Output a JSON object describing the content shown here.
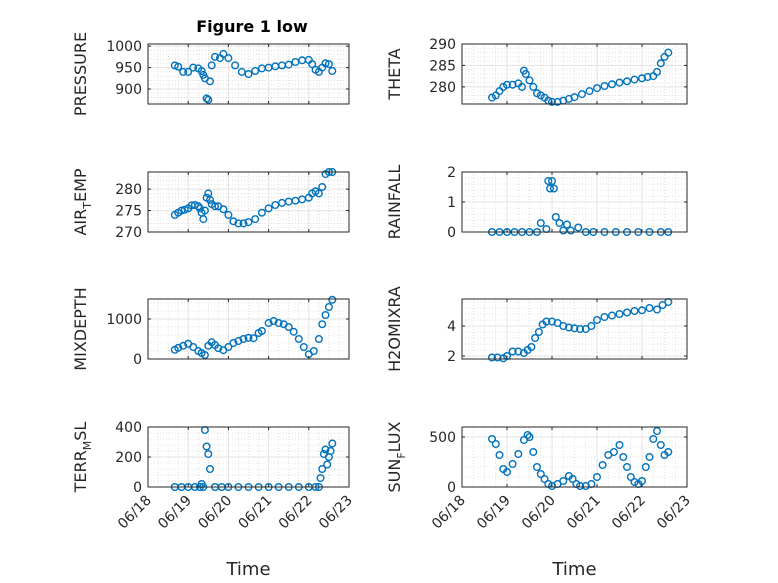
{
  "figure_title": "Figure 1 low",
  "chart_data": [
    {
      "type": "scatter",
      "ylabel": "PRESSURE",
      "ylim": [
        865,
        1005
      ],
      "yticks": [
        900,
        950,
        1000
      ],
      "grid": true,
      "marker": "circle-open",
      "color": "#0072BD",
      "x": [
        "06/18 16:00",
        "06/18 18:00",
        "06/18 21:00",
        "06/19 00:00",
        "06/19 03:00",
        "06/19 06:00",
        "06/19 08:00",
        "06/19 09:00",
        "06/19 10:00",
        "06/19 11:00",
        "06/19 12:00",
        "06/19 13:00",
        "06/19 14:00",
        "06/19 16:00",
        "06/19 19:00",
        "06/19 21:00",
        "06/20 00:00",
        "06/20 04:00",
        "06/20 08:00",
        "06/20 12:00",
        "06/20 16:00",
        "06/20 20:00",
        "06/21 00:00",
        "06/21 04:00",
        "06/21 08:00",
        "06/21 12:00",
        "06/21 16:00",
        "06/21 20:00",
        "06/22 00:00",
        "06/22 02:00",
        "06/22 04:00",
        "06/22 06:00",
        "06/22 08:00",
        "06/22 10:00",
        "06/22 12:00",
        "06/22 14:00"
      ],
      "y": [
        955,
        952,
        940,
        940,
        950,
        948,
        942,
        933,
        925,
        878,
        875,
        918,
        955,
        975,
        972,
        982,
        972,
        955,
        940,
        935,
        942,
        948,
        950,
        953,
        955,
        957,
        963,
        967,
        968,
        958,
        945,
        940,
        950,
        960,
        958,
        942
      ]
    },
    {
      "type": "scatter",
      "ylabel": "THETA",
      "ylim": [
        276,
        290
      ],
      "yticks": [
        280,
        285,
        290
      ],
      "grid": true,
      "marker": "circle-open",
      "color": "#0072BD",
      "x": [
        "06/18 16:00",
        "06/18 18:00",
        "06/18 20:00",
        "06/18 22:00",
        "06/19 00:00",
        "06/19 03:00",
        "06/19 06:00",
        "06/19 08:00",
        "06/19 09:00",
        "06/19 10:00",
        "06/19 12:00",
        "06/19 14:00",
        "06/19 16:00",
        "06/19 18:00",
        "06/19 20:00",
        "06/19 22:00",
        "06/20 00:00",
        "06/20 03:00",
        "06/20 06:00",
        "06/20 09:00",
        "06/20 12:00",
        "06/20 16:00",
        "06/20 20:00",
        "06/21 00:00",
        "06/21 04:00",
        "06/21 08:00",
        "06/21 12:00",
        "06/21 16:00",
        "06/21 20:00",
        "06/22 00:00",
        "06/22 03:00",
        "06/22 06:00",
        "06/22 08:00",
        "06/22 10:00",
        "06/22 12:00",
        "06/22 14:00"
      ],
      "y": [
        277.5,
        278,
        279,
        280,
        280.5,
        280.5,
        280.8,
        280,
        283.8,
        283,
        281.5,
        280,
        278.5,
        278,
        277.5,
        276.8,
        276.5,
        276.5,
        276.8,
        277.2,
        277.6,
        278.3,
        279,
        279.7,
        280.2,
        280.6,
        281,
        281.3,
        281.7,
        282,
        282.3,
        282.5,
        283.5,
        285.5,
        287,
        288
      ]
    },
    {
      "type": "scatter",
      "ylabel": "AIR_TEMP",
      "ylim": [
        270,
        284
      ],
      "yticks": [
        270,
        275,
        280
      ],
      "grid": true,
      "marker": "circle-open",
      "color": "#0072BD",
      "x": [
        "06/18 16:00",
        "06/18 18:00",
        "06/18 20:00",
        "06/18 22:00",
        "06/19 00:00",
        "06/19 02:00",
        "06/19 04:00",
        "06/19 06:00",
        "06/19 07:00",
        "06/19 08:00",
        "06/19 09:00",
        "06/19 10:00",
        "06/19 11:00",
        "06/19 12:00",
        "06/19 13:00",
        "06/19 14:00",
        "06/19 16:00",
        "06/19 18:00",
        "06/19 21:00",
        "06/20 00:00",
        "06/20 03:00",
        "06/20 06:00",
        "06/20 09:00",
        "06/20 12:00",
        "06/20 16:00",
        "06/20 20:00",
        "06/21 00:00",
        "06/21 04:00",
        "06/21 08:00",
        "06/21 12:00",
        "06/21 16:00",
        "06/21 20:00",
        "06/22 00:00",
        "06/22 02:00",
        "06/22 04:00",
        "06/22 06:00",
        "06/22 08:00",
        "06/22 10:00",
        "06/22 12:00",
        "06/22 14:00"
      ],
      "y": [
        274,
        274.5,
        275,
        275.2,
        275.5,
        276.2,
        276.3,
        276,
        275.5,
        274.5,
        273,
        275,
        278,
        279,
        277.5,
        276.5,
        276,
        276,
        275.3,
        274,
        272.5,
        272,
        272,
        272.3,
        273,
        274.5,
        275.5,
        276.3,
        276.8,
        277.1,
        277.3,
        277.6,
        278,
        279,
        279.5,
        279,
        280.5,
        283.5,
        284,
        284
      ]
    },
    {
      "type": "scatter",
      "ylabel": "RAINFALL",
      "ylim": [
        0,
        2
      ],
      "yticks": [
        0,
        1,
        2
      ],
      "grid": true,
      "marker": "circle-open",
      "color": "#0072BD",
      "x": [
        "06/18 16:00",
        "06/18 20:00",
        "06/19 00:00",
        "06/19 04:00",
        "06/19 08:00",
        "06/19 12:00",
        "06/19 16:00",
        "06/19 18:00",
        "06/19 21:00",
        "06/19 22:00",
        "06/19 23:00",
        "06/20 00:00",
        "06/20 01:00",
        "06/20 02:00",
        "06/20 04:00",
        "06/20 06:00",
        "06/20 08:00",
        "06/20 10:00",
        "06/20 14:00",
        "06/20 18:00",
        "06/20 22:00",
        "06/21 04:00",
        "06/21 10:00",
        "06/21 16:00",
        "06/21 22:00",
        "06/22 04:00",
        "06/22 10:00",
        "06/22 14:00"
      ],
      "y": [
        0,
        0,
        0,
        0,
        0,
        0,
        0,
        0.3,
        0.1,
        1.7,
        1.45,
        1.7,
        1.45,
        0.5,
        0.3,
        0.05,
        0.25,
        0.05,
        0.15,
        0,
        0,
        0,
        0,
        0,
        0,
        0,
        0,
        0
      ]
    },
    {
      "type": "scatter",
      "ylabel": "MIXDEPTH",
      "ylim": [
        0,
        1500
      ],
      "yticks": [
        0,
        1000
      ],
      "grid": true,
      "marker": "circle-open",
      "color": "#0072BD",
      "x": [
        "06/18 16:00",
        "06/18 18:00",
        "06/18 21:00",
        "06/19 00:00",
        "06/19 03:00",
        "06/19 06:00",
        "06/19 08:00",
        "06/19 10:00",
        "06/19 12:00",
        "06/19 14:00",
        "06/19 16:00",
        "06/19 18:00",
        "06/19 21:00",
        "06/20 00:00",
        "06/20 03:00",
        "06/20 06:00",
        "06/20 09:00",
        "06/20 12:00",
        "06/20 15:00",
        "06/20 18:00",
        "06/20 20:00",
        "06/21 00:00",
        "06/21 03:00",
        "06/21 06:00",
        "06/21 09:00",
        "06/21 12:00",
        "06/21 15:00",
        "06/21 18:00",
        "06/21 21:00",
        "06/22 00:00",
        "06/22 03:00",
        "06/22 06:00",
        "06/22 08:00",
        "06/22 10:00",
        "06/22 12:00",
        "06/22 14:00"
      ],
      "y": [
        230,
        280,
        330,
        380,
        300,
        200,
        150,
        100,
        330,
        420,
        350,
        270,
        220,
        300,
        400,
        450,
        500,
        530,
        520,
        650,
        700,
        900,
        950,
        900,
        870,
        800,
        680,
        500,
        300,
        120,
        200,
        500,
        870,
        1100,
        1300,
        1480
      ]
    },
    {
      "type": "scatter",
      "ylabel": "H2OMIXRA",
      "ylim": [
        1.8,
        5.8
      ],
      "yticks": [
        2,
        4
      ],
      "grid": true,
      "marker": "circle-open",
      "color": "#0072BD",
      "x": [
        "06/18 16:00",
        "06/18 19:00",
        "06/18 22:00",
        "06/19 00:00",
        "06/19 03:00",
        "06/19 06:00",
        "06/19 09:00",
        "06/19 11:00",
        "06/19 13:00",
        "06/19 15:00",
        "06/19 17:00",
        "06/19 19:00",
        "06/19 21:00",
        "06/20 00:00",
        "06/20 03:00",
        "06/20 06:00",
        "06/20 09:00",
        "06/20 12:00",
        "06/20 15:00",
        "06/20 18:00",
        "06/20 21:00",
        "06/21 00:00",
        "06/21 04:00",
        "06/21 08:00",
        "06/21 12:00",
        "06/21 16:00",
        "06/21 20:00",
        "06/22 00:00",
        "06/22 04:00",
        "06/22 08:00",
        "06/22 11:00",
        "06/22 14:00"
      ],
      "y": [
        1.9,
        1.9,
        1.85,
        2.0,
        2.3,
        2.3,
        2.2,
        2.4,
        2.6,
        3.2,
        3.6,
        4.1,
        4.3,
        4.3,
        4.2,
        4.0,
        3.9,
        3.85,
        3.8,
        3.8,
        4.0,
        4.4,
        4.6,
        4.7,
        4.8,
        4.9,
        5.0,
        5.05,
        5.2,
        5.1,
        5.4,
        5.6
      ]
    },
    {
      "type": "scatter",
      "ylabel": "TERR_MSL",
      "ylim": [
        0,
        400
      ],
      "yticks": [
        0,
        200,
        400
      ],
      "grid": true,
      "marker": "circle-open",
      "color": "#0072BD",
      "xticks": [
        "06/18",
        "06/19",
        "06/20",
        "06/21",
        "06/22",
        "06/23"
      ],
      "xlabel": "Time",
      "x": [
        "06/18 16:00",
        "06/18 20:00",
        "06/19 00:00",
        "06/19 04:00",
        "06/19 07:00",
        "06/19 08:00",
        "06/19 09:00",
        "06/19 10:00",
        "06/19 11:00",
        "06/19 12:00",
        "06/19 13:00",
        "06/19 16:00",
        "06/19 20:00",
        "06/20 00:00",
        "06/20 06:00",
        "06/20 12:00",
        "06/20 18:00",
        "06/21 00:00",
        "06/21 06:00",
        "06/21 12:00",
        "06/21 18:00",
        "06/22 00:00",
        "06/22 04:00",
        "06/22 06:00",
        "06/22 07:00",
        "06/22 08:00",
        "06/22 09:00",
        "06/22 10:00",
        "06/22 11:00",
        "06/22 12:00",
        "06/22 13:00",
        "06/22 14:00"
      ],
      "y": [
        0,
        0,
        0,
        0,
        0,
        20,
        0,
        380,
        270,
        220,
        120,
        0,
        0,
        0,
        0,
        0,
        0,
        0,
        0,
        0,
        0,
        0,
        0,
        0,
        60,
        120,
        220,
        250,
        150,
        200,
        240,
        290
      ]
    },
    {
      "type": "scatter",
      "ylabel": "SUN_FLUX",
      "ylim": [
        0,
        600
      ],
      "yticks": [
        0,
        500
      ],
      "grid": true,
      "marker": "circle-open",
      "color": "#0072BD",
      "xticks": [
        "06/18",
        "06/19",
        "06/20",
        "06/21",
        "06/22",
        "06/23"
      ],
      "xlabel": "Time",
      "x": [
        "06/18 16:00",
        "06/18 18:00",
        "06/18 20:00",
        "06/18 22:00",
        "06/19 00:00",
        "06/19 03:00",
        "06/19 06:00",
        "06/19 09:00",
        "06/19 11:00",
        "06/19 12:00",
        "06/19 14:00",
        "06/19 16:00",
        "06/19 18:00",
        "06/19 20:00",
        "06/19 22:00",
        "06/20 00:00",
        "06/20 03:00",
        "06/20 06:00",
        "06/20 09:00",
        "06/20 11:00",
        "06/20 13:00",
        "06/20 15:00",
        "06/20 18:00",
        "06/20 21:00",
        "06/21 00:00",
        "06/21 03:00",
        "06/21 06:00",
        "06/21 09:00",
        "06/21 12:00",
        "06/21 14:00",
        "06/21 16:00",
        "06/21 18:00",
        "06/21 20:00",
        "06/21 22:00",
        "06/22 00:00",
        "06/22 02:00",
        "06/22 04:00",
        "06/22 06:00",
        "06/22 08:00",
        "06/22 10:00",
        "06/22 12:00",
        "06/22 14:00"
      ],
      "y": [
        480,
        430,
        320,
        180,
        150,
        230,
        330,
        470,
        520,
        500,
        350,
        200,
        130,
        80,
        30,
        10,
        30,
        60,
        110,
        80,
        30,
        10,
        10,
        30,
        100,
        220,
        320,
        350,
        420,
        300,
        200,
        100,
        50,
        30,
        60,
        200,
        300,
        480,
        560,
        420,
        320,
        350
      ]
    }
  ]
}
